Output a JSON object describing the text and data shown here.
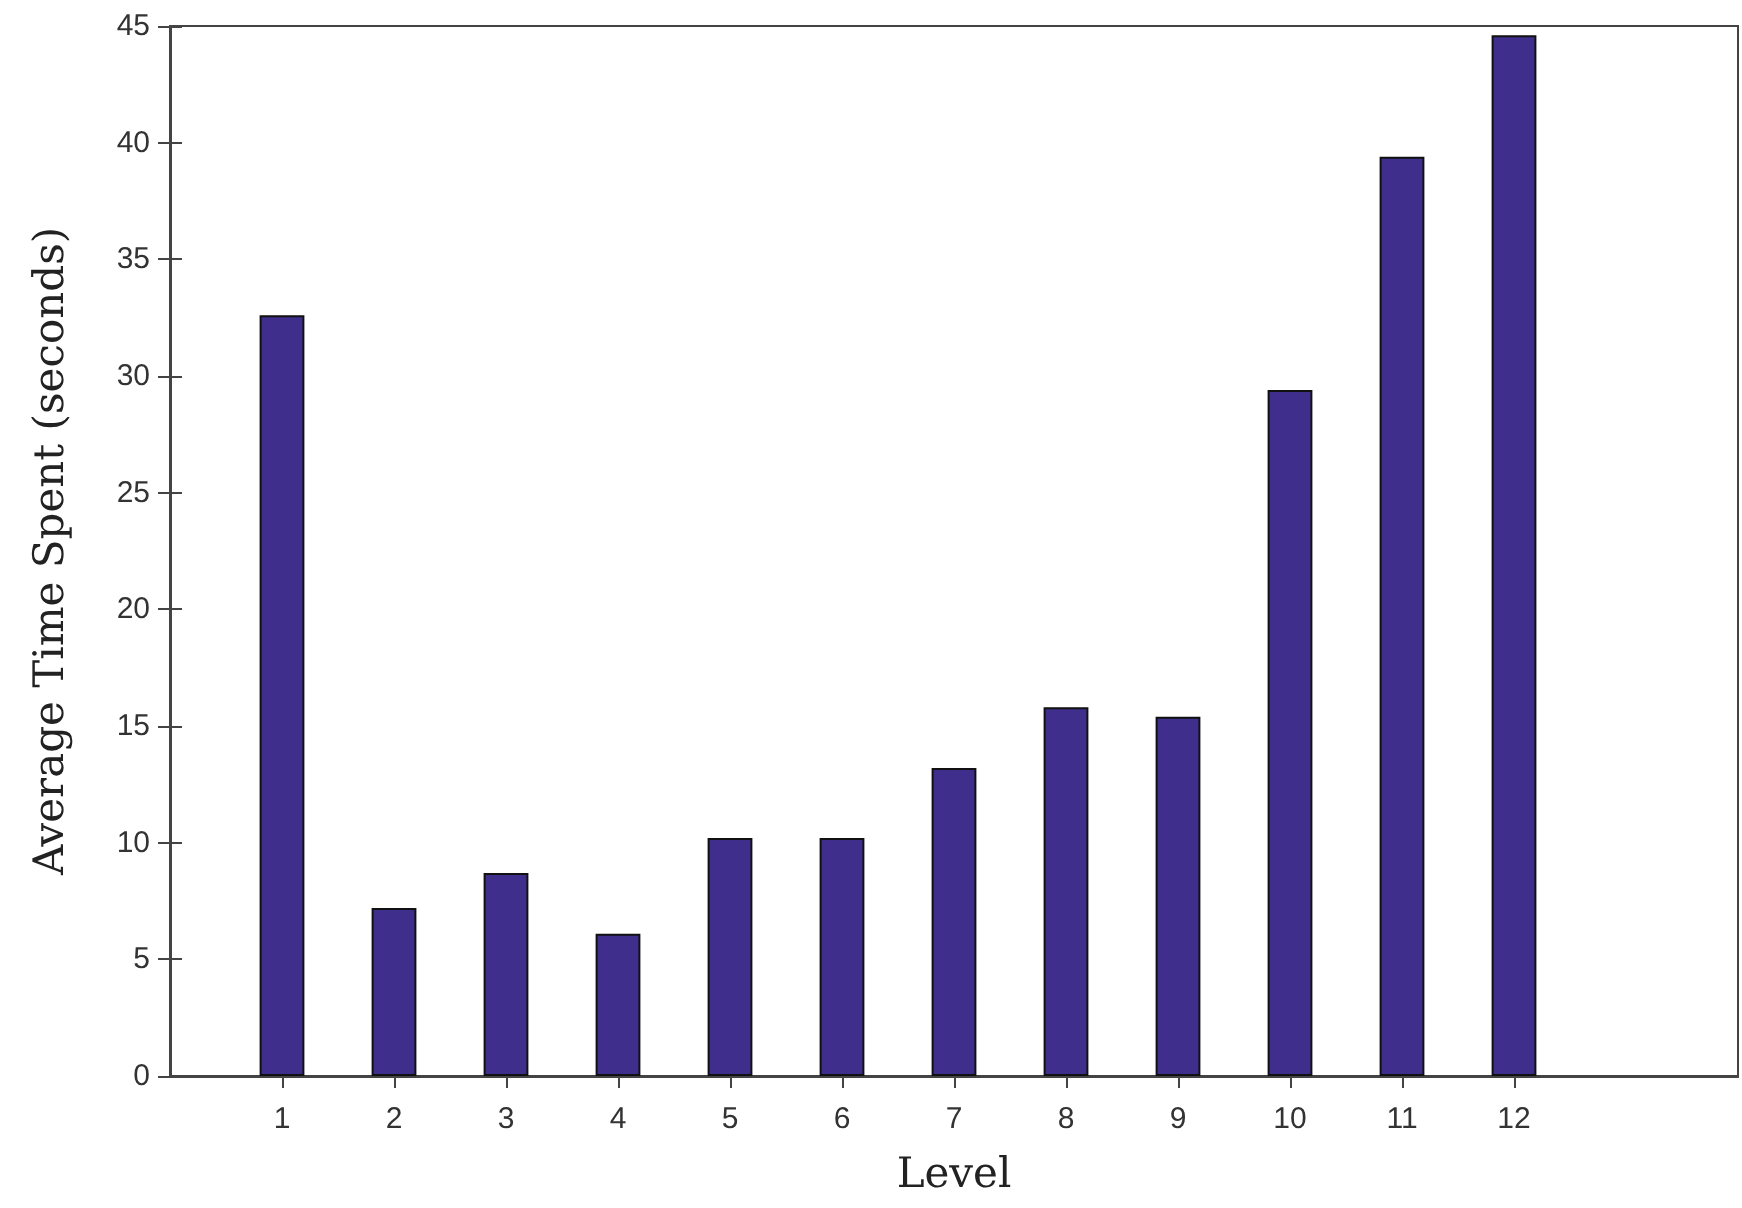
{
  "chart_data": {
    "type": "bar",
    "xlabel": "Level",
    "ylabel": "Average Time Spent (seconds)",
    "x": [
      1,
      2,
      3,
      4,
      5,
      6,
      7,
      8,
      9,
      10,
      11,
      12
    ],
    "values": [
      32.6,
      7.2,
      8.7,
      6.1,
      10.2,
      10.2,
      13.2,
      15.8,
      15.4,
      29.4,
      39.4,
      44.6
    ],
    "color": "#3f2e8c",
    "xlim": [
      0,
      14
    ],
    "xticks": [
      1,
      2,
      3,
      4,
      5,
      6,
      7,
      8,
      9,
      10,
      11,
      12
    ],
    "ylim": [
      0,
      45
    ],
    "yticks": [
      0,
      5,
      10,
      15,
      20,
      25,
      30,
      35,
      40,
      45
    ],
    "grid": false
  }
}
